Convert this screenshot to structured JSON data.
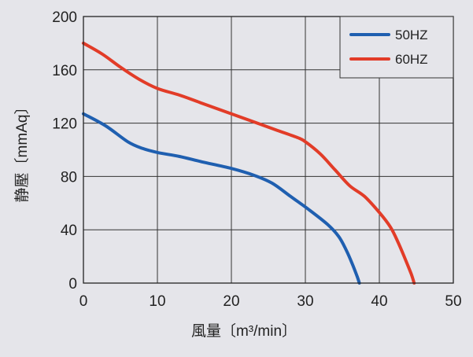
{
  "chart_data": {
    "type": "line",
    "xlabel": "風量〔m³/min〕",
    "ylabel": "静壓〔mmAq〕",
    "xlim": [
      0,
      50
    ],
    "ylim": [
      0,
      200
    ],
    "xticks": [
      0,
      10,
      20,
      30,
      40,
      50
    ],
    "yticks": [
      0,
      40,
      80,
      120,
      160,
      200
    ],
    "grid": true,
    "legend_position": "top-right",
    "series": [
      {
        "name": "50HZ",
        "color": "#1f5fb0",
        "points": [
          [
            0,
            127
          ],
          [
            3,
            118
          ],
          [
            6,
            106
          ],
          [
            8,
            101
          ],
          [
            10,
            98
          ],
          [
            13,
            95
          ],
          [
            16,
            91
          ],
          [
            20,
            86
          ],
          [
            23,
            81
          ],
          [
            25.5,
            75
          ],
          [
            28,
            65
          ],
          [
            30.5,
            55
          ],
          [
            33,
            44
          ],
          [
            34.5,
            35
          ],
          [
            35.5,
            25
          ],
          [
            36.3,
            15
          ],
          [
            37,
            5
          ],
          [
            37.3,
            0
          ]
        ]
      },
      {
        "name": "60HZ",
        "color": "#e23c28",
        "points": [
          [
            0,
            180
          ],
          [
            2.5,
            172
          ],
          [
            5,
            162
          ],
          [
            7.5,
            153
          ],
          [
            10,
            146
          ],
          [
            13,
            141
          ],
          [
            16,
            135
          ],
          [
            20,
            127
          ],
          [
            23,
            121
          ],
          [
            26,
            115
          ],
          [
            29,
            109
          ],
          [
            30,
            106
          ],
          [
            32,
            97
          ],
          [
            34,
            85
          ],
          [
            36,
            73
          ],
          [
            38,
            65
          ],
          [
            40,
            53
          ],
          [
            41.5,
            42
          ],
          [
            42.5,
            31
          ],
          [
            43.5,
            18
          ],
          [
            44.3,
            7
          ],
          [
            44.7,
            0
          ]
        ]
      }
    ]
  }
}
